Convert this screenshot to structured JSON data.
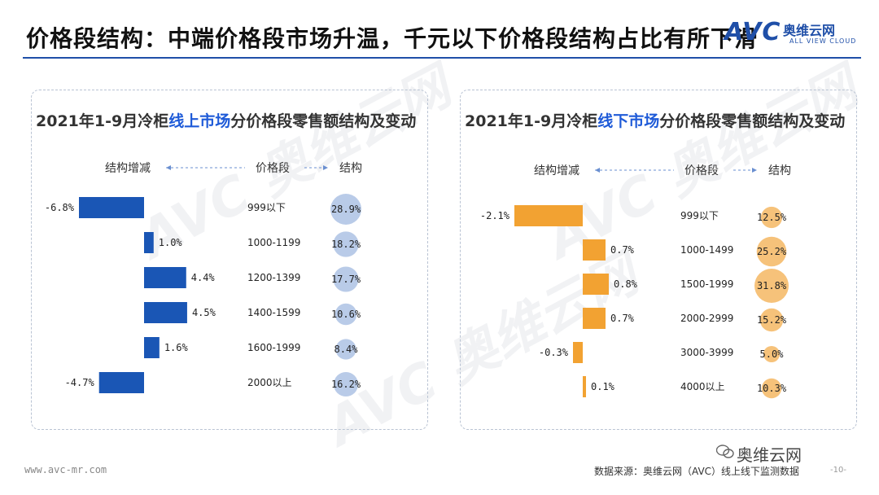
{
  "header": {
    "title": "价格段结构：中端价格段市场升温，千元以下价格段结构占比有所下滑",
    "logo_text": "AVC",
    "logo_cn": "奥维云网",
    "logo_en": "ALL VIEW CLOUD"
  },
  "column_headers": {
    "change": "结构增减",
    "segment": "价格段",
    "share": "结构"
  },
  "chart_data": [
    {
      "type": "bar",
      "title_prefix": "2021年1-9月冷柜",
      "title_highlight": "线上市场",
      "title_suffix": "分价格段零售额结构及变动",
      "color": "#1a56b5",
      "circle_color": "#b9cbe8",
      "categories": [
        "999以下",
        "1000-1199",
        "1200-1399",
        "1400-1599",
        "1600-1999",
        "2000以上"
      ],
      "change_values": [
        -6.8,
        1.0,
        4.4,
        4.5,
        1.6,
        -4.7
      ],
      "change_labels": [
        "-6.8%",
        "1.0%",
        "4.4%",
        "4.5%",
        "1.6%",
        "-4.7%"
      ],
      "share_values": [
        28.9,
        18.2,
        17.7,
        10.6,
        8.4,
        16.2
      ],
      "share_labels": [
        "28.9%",
        "18.2%",
        "17.7%",
        "10.6%",
        "8.4%",
        "16.2%"
      ]
    },
    {
      "type": "bar",
      "title_prefix": "2021年1-9月冷柜",
      "title_highlight": "线下市场",
      "title_suffix": "分价格段零售额结构及变动",
      "color": "#f2a232",
      "circle_color": "#f6c27a",
      "categories": [
        "999以下",
        "1000-1499",
        "1500-1999",
        "2000-2999",
        "3000-3999",
        "4000以上"
      ],
      "change_values": [
        -2.1,
        0.7,
        0.8,
        0.7,
        -0.3,
        0.1
      ],
      "change_labels": [
        "-2.1%",
        "0.7%",
        "0.8%",
        "0.7%",
        "-0.3%",
        "0.1%"
      ],
      "share_values": [
        12.5,
        25.2,
        31.8,
        15.2,
        5.0,
        10.3
      ],
      "share_labels": [
        "12.5%",
        "25.2%",
        "31.8%",
        "15.2%",
        "5.0%",
        "10.3%"
      ]
    }
  ],
  "watermark": "AVC 奥维云网",
  "footer": {
    "website": "www.avc-mr.com",
    "source": "数据来源：奥维云网（AVC）线上线下监测数据",
    "wechat": "奥维云网",
    "page": "-10-"
  }
}
